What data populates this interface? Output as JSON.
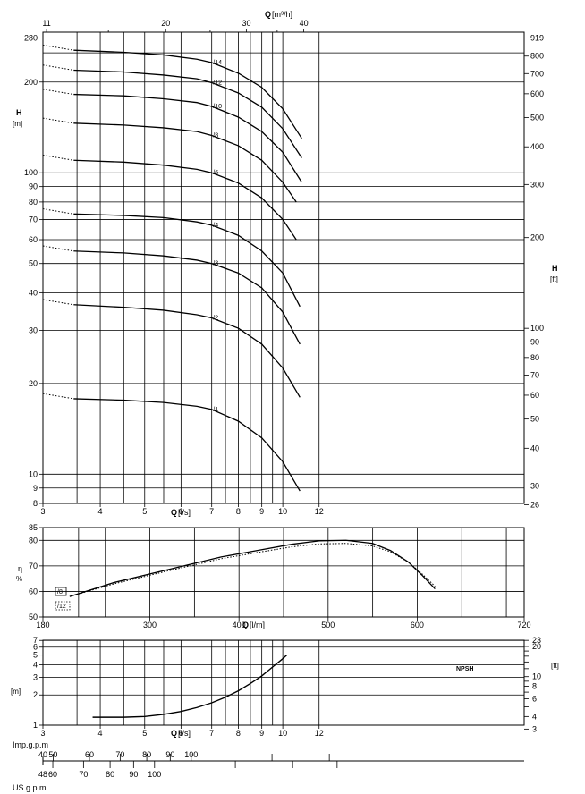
{
  "chart_data": [
    {
      "type": "line",
      "name": "head",
      "xlabel_bottom": "Q",
      "xunit_bottom": "[l/s]",
      "xlabel_top": "Q",
      "xunit_top": "[m³/h]",
      "ylabel_left": "H",
      "yunit_left": "[m]",
      "ylabel_right": "H",
      "yunit_right": "[ft]",
      "xlim": [
        3,
        12
      ],
      "ylim": [
        8,
        280
      ],
      "yscale": "log",
      "x_ticks": [
        3,
        4,
        5,
        6,
        7,
        8,
        9,
        10,
        12
      ],
      "top_ticks": [
        11,
        20,
        30,
        40
      ],
      "y_ticks": [
        8,
        9,
        10,
        20,
        30,
        40,
        50,
        60,
        70,
        80,
        90,
        100,
        200,
        280
      ],
      "right_ticks": [
        26,
        30,
        40,
        50,
        60,
        70,
        80,
        90,
        100,
        200,
        300,
        400,
        500,
        600,
        700,
        800,
        919
      ],
      "grid": true,
      "series": [
        {
          "name": "/1",
          "x": [
            3.5,
            4.5,
            5.5,
            6.5,
            7.0,
            8.0,
            9.0,
            10.0,
            10.9
          ],
          "y": [
            17.8,
            17.6,
            17.3,
            16.8,
            16.4,
            15.0,
            13.2,
            11.0,
            8.8
          ]
        },
        {
          "name": "/2",
          "x": [
            3.5,
            4.5,
            5.5,
            6.5,
            7.0,
            8.0,
            9.0,
            10.0,
            10.9
          ],
          "y": [
            36.5,
            35.8,
            35.0,
            33.8,
            33.0,
            30.5,
            27.0,
            22.5,
            18.0
          ]
        },
        {
          "name": "/3",
          "x": [
            3.5,
            4.5,
            5.5,
            6.5,
            7.0,
            8.0,
            9.0,
            10.0,
            10.9
          ],
          "y": [
            55,
            54.2,
            53.0,
            51.3,
            50.0,
            46.5,
            41.5,
            34.5,
            27.0
          ]
        },
        {
          "name": "/4",
          "x": [
            3.5,
            4.5,
            5.5,
            6.5,
            7.0,
            8.0,
            9.0,
            10.0,
            10.9
          ],
          "y": [
            73,
            72.2,
            71.0,
            68.7,
            67.0,
            62.0,
            55.0,
            46.5,
            36.0
          ]
        },
        {
          "name": "/6",
          "x": [
            3.5,
            4.5,
            5.5,
            6.5,
            7.0,
            8.0,
            9.0,
            10.0,
            10.7
          ],
          "y": [
            110,
            108.5,
            106,
            102.7,
            100,
            92.5,
            82.5,
            70,
            60
          ]
        },
        {
          "name": "/8",
          "x": [
            3.5,
            4.5,
            5.5,
            6.5,
            7.0,
            8.0,
            9.0,
            10.0,
            10.7
          ],
          "y": [
            146,
            144,
            141,
            137,
            133,
            123,
            110,
            93,
            80
          ]
        },
        {
          "name": "/10",
          "x": [
            3.5,
            4.5,
            5.5,
            6.5,
            7.0,
            8.0,
            9.0,
            10.0,
            11.0
          ],
          "y": [
            182,
            180,
            176,
            171,
            166,
            153,
            137,
            117,
            93
          ]
        },
        {
          "name": "/12",
          "x": [
            3.5,
            4.5,
            5.5,
            6.5,
            7.0,
            8.0,
            9.0,
            10.0,
            11.0
          ],
          "y": [
            219,
            216,
            211,
            205,
            199,
            184,
            165,
            140,
            112
          ]
        },
        {
          "name": "/14",
          "x": [
            3.5,
            4.5,
            5.5,
            6.5,
            7.0,
            8.0,
            9.0,
            10.0,
            11.0
          ],
          "y": [
            255,
            251,
            246,
            238,
            232,
            214,
            192,
            163,
            130
          ]
        }
      ]
    },
    {
      "type": "line",
      "name": "efficiency",
      "xlabel": "Q",
      "xunit": "[l/m]",
      "ylabel": "η",
      "yunit": "%",
      "xlim": [
        180,
        720
      ],
      "ylim": [
        50,
        85
      ],
      "x_ticks": [
        180,
        300,
        400,
        500,
        600,
        720
      ],
      "y_ticks": [
        50,
        60,
        70,
        80,
        85
      ],
      "grid": true,
      "legend": [
        "/8",
        "/12"
      ],
      "series": [
        {
          "name": "/8",
          "style": "solid",
          "x": [
            210,
            260,
            320,
            380,
            420,
            460,
            490,
            520,
            550,
            570,
            590,
            605,
            620
          ],
          "y": [
            58,
            63.5,
            68.5,
            73.5,
            76,
            78.5,
            79.8,
            80.0,
            78.8,
            76,
            71.5,
            66.5,
            61
          ]
        },
        {
          "name": "/12",
          "style": "dotted",
          "x": [
            210,
            260,
            320,
            380,
            420,
            460,
            490,
            520,
            550,
            570,
            590,
            605,
            620
          ],
          "y": [
            58,
            63,
            68,
            72.8,
            75.2,
            77.5,
            78.6,
            78.8,
            77.8,
            75.5,
            71.5,
            67,
            62
          ]
        }
      ]
    },
    {
      "type": "line",
      "name": "npsh",
      "xlabel": "Q",
      "xunit": "[l/s]",
      "ylabel_left": "[m]",
      "ylabel_right": "[ft]",
      "xlim": [
        3,
        12
      ],
      "ylim": [
        1,
        7
      ],
      "yscale": "log",
      "x_ticks": [
        3,
        4,
        5,
        6,
        7,
        8,
        9,
        10,
        12
      ],
      "y_ticks": [
        1,
        2,
        3,
        4,
        5,
        6,
        7
      ],
      "right_ticks": [
        3,
        4,
        6,
        8,
        10,
        20,
        23
      ],
      "annotation": "NPSH",
      "series": [
        {
          "name": "NPSH",
          "x": [
            3.85,
            4.5,
            5.0,
            5.5,
            6.0,
            6.5,
            7.0,
            7.5,
            8.0,
            8.5,
            9.0,
            9.5,
            10.0,
            10.2
          ],
          "y": [
            1.2,
            1.2,
            1.22,
            1.28,
            1.37,
            1.5,
            1.67,
            1.9,
            2.2,
            2.6,
            3.1,
            3.8,
            4.6,
            5.0
          ]
        }
      ]
    },
    {
      "type": "table",
      "name": "flow-scales",
      "imp_label": "Imp.g.p.m",
      "us_label": "US.g.p.m",
      "imp_ticks": [
        40,
        50,
        60,
        70,
        80,
        90,
        100
      ],
      "us_ticks": [
        48,
        60,
        70,
        80,
        90,
        100
      ]
    }
  ]
}
